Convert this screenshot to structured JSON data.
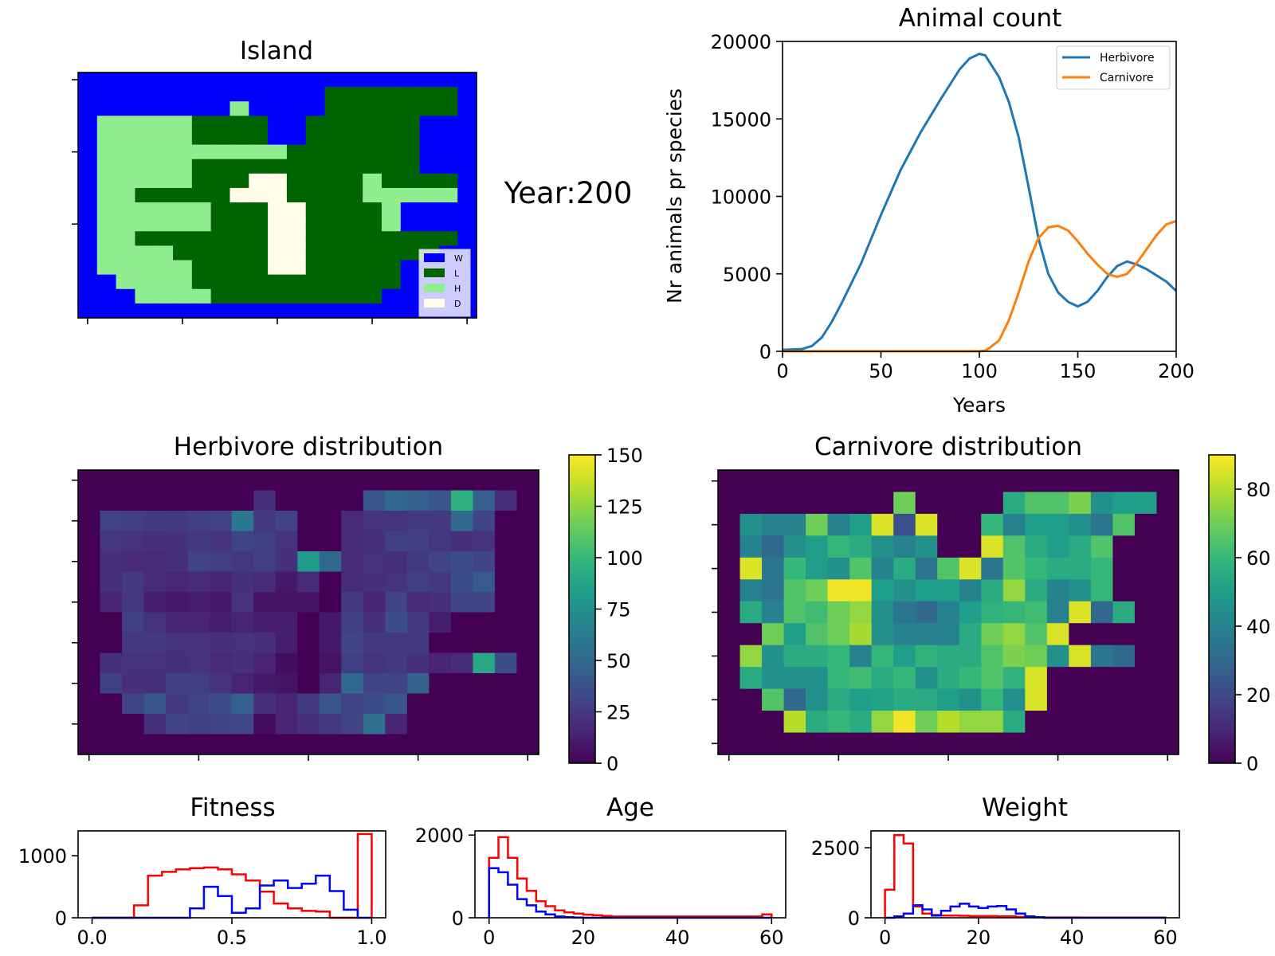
{
  "year_label": "Year:200",
  "island": {
    "title": "Island",
    "colors": {
      "W": "#0000ff",
      "L": "#006400",
      "H": "#90ee90",
      "D": "#fffde7"
    },
    "legend": [
      {
        "key": "W",
        "label": "W"
      },
      {
        "key": "L",
        "label": "L"
      },
      {
        "key": "H",
        "label": "H"
      },
      {
        "key": "D",
        "label": "D"
      }
    ],
    "map": [
      "WWWWWWWWWWWWWWWWWWWWW",
      "WWWWWWWWWWWWWLLLLLLLW",
      "WWWWWWWWHWWWWLLLLLLLW",
      "WHHHHHLLLLWWLLLLLLWWW",
      "WHHHHHLLLLWWLLLLLLWWW",
      "WHHHHHHHHHHLLLLLLLWWW",
      "WHHHHHLLLLLLLLLLLLWWW",
      "WHHHHHLLLDDLLLLHLLLLW",
      "WHHLLLLLDDDLLLLHHHHHW",
      "WHHHHHHLLLDDLLLLHWWWW",
      "WHHHHHHLLLDDLLLLHWWWW",
      "WHHLLLLLLLDDLLLLLLLLW",
      "WHHHHLLLLLDDLLLLLLLWW",
      "WHHHHHLLLLDDLLLLLWWWW",
      "WWHHHHLLLLLLLLLLLWWWW",
      "WWWHHHHLLLLLLLLLWWWWW",
      "WWWWWWWWWWWWWWWWWWWWW"
    ]
  },
  "animal_count": {
    "chart_data": {
      "type": "line",
      "title": "Animal count",
      "xlabel": "Years",
      "ylabel": "Nr animals pr species",
      "xlim": [
        0,
        200
      ],
      "ylim": [
        0,
        20000
      ],
      "xticks": [
        0,
        50,
        100,
        150,
        200
      ],
      "yticks": [
        0,
        5000,
        10000,
        15000,
        20000
      ],
      "legend_position": "top-right",
      "x": [
        0,
        10,
        15,
        20,
        25,
        30,
        40,
        50,
        60,
        70,
        80,
        90,
        95,
        100,
        103,
        105,
        110,
        115,
        120,
        125,
        130,
        135,
        140,
        145,
        150,
        155,
        160,
        165,
        170,
        175,
        180,
        185,
        190,
        195,
        200
      ],
      "series": [
        {
          "name": "Herbivore",
          "color": "#1f77b4",
          "values": [
            100,
            150,
            350,
            900,
            1900,
            3100,
            5700,
            8800,
            11700,
            14100,
            16200,
            18200,
            18900,
            19200,
            19100,
            18700,
            17700,
            16100,
            13800,
            10600,
            7300,
            5000,
            3800,
            3200,
            2900,
            3200,
            3900,
            4800,
            5500,
            5800,
            5600,
            5300,
            4900,
            4500,
            3900
          ]
        },
        {
          "name": "Carnivore",
          "color": "#ff7f0e",
          "values": [
            0,
            0,
            0,
            0,
            0,
            0,
            0,
            0,
            0,
            0,
            0,
            0,
            0,
            0,
            50,
            200,
            700,
            2000,
            3800,
            5800,
            7300,
            8000,
            8100,
            7800,
            7100,
            6300,
            5600,
            5000,
            4800,
            5000,
            5700,
            6600,
            7500,
            8200,
            8400
          ]
        }
      ]
    }
  },
  "herbivore_dist": {
    "title": "Herbivore distribution",
    "colorbar_ticks": [
      0,
      25,
      50,
      75,
      100,
      125,
      150
    ],
    "chart_data": {
      "type": "heatmap",
      "vmin": 0,
      "vmax": 150,
      "grid": [
        [
          0,
          0,
          0,
          0,
          0,
          0,
          0,
          0,
          0,
          0,
          0,
          0,
          0,
          0,
          0,
          0,
          0,
          0,
          0,
          0,
          0
        ],
        [
          0,
          0,
          0,
          0,
          0,
          0,
          0,
          0,
          20,
          0,
          0,
          0,
          0,
          40,
          50,
          45,
          40,
          95,
          45,
          20,
          0
        ],
        [
          0,
          30,
          28,
          26,
          25,
          28,
          30,
          60,
          25,
          30,
          0,
          0,
          18,
          22,
          22,
          26,
          25,
          50,
          30,
          0,
          0
        ],
        [
          0,
          24,
          22,
          20,
          20,
          25,
          22,
          30,
          28,
          22,
          0,
          0,
          18,
          20,
          28,
          28,
          24,
          20,
          22,
          0,
          0
        ],
        [
          0,
          20,
          18,
          18,
          20,
          30,
          28,
          24,
          28,
          20,
          80,
          50,
          18,
          22,
          20,
          25,
          30,
          35,
          30,
          0,
          0
        ],
        [
          0,
          20,
          25,
          18,
          16,
          18,
          15,
          20,
          18,
          10,
          18,
          0,
          18,
          20,
          22,
          28,
          25,
          35,
          42,
          0,
          0
        ],
        [
          0,
          15,
          25,
          12,
          10,
          12,
          10,
          22,
          8,
          8,
          8,
          0,
          25,
          15,
          30,
          18,
          20,
          30,
          30,
          0,
          0
        ],
        [
          0,
          0,
          28,
          22,
          15,
          15,
          12,
          15,
          12,
          12,
          0,
          10,
          28,
          20,
          35,
          25,
          12,
          0,
          0,
          0,
          0
        ],
        [
          0,
          0,
          25,
          25,
          22,
          22,
          20,
          22,
          20,
          12,
          0,
          10,
          30,
          25,
          25,
          25,
          0,
          0,
          0,
          0,
          0
        ],
        [
          0,
          20,
          22,
          22,
          20,
          22,
          18,
          20,
          15,
          5,
          0,
          8,
          28,
          22,
          25,
          20,
          15,
          18,
          90,
          35,
          0
        ],
        [
          0,
          28,
          20,
          20,
          28,
          28,
          22,
          15,
          10,
          8,
          0,
          15,
          50,
          30,
          30,
          45,
          0,
          0,
          0,
          0,
          0
        ],
        [
          0,
          0,
          30,
          40,
          25,
          30,
          35,
          45,
          20,
          15,
          25,
          40,
          30,
          35,
          40,
          0,
          0,
          0,
          0,
          0,
          0
        ],
        [
          0,
          0,
          0,
          20,
          30,
          28,
          30,
          32,
          5,
          15,
          20,
          25,
          30,
          55,
          15,
          0,
          0,
          0,
          0,
          0,
          0
        ],
        [
          0,
          0,
          0,
          0,
          0,
          0,
          0,
          0,
          0,
          0,
          0,
          0,
          0,
          0,
          0,
          0,
          0,
          0,
          0,
          0,
          0
        ]
      ]
    }
  },
  "carnivore_dist": {
    "title": "Carnivore distribution",
    "colorbar_ticks": [
      0,
      20,
      40,
      60,
      80
    ],
    "chart_data": {
      "type": "heatmap",
      "vmin": 0,
      "vmax": 90,
      "grid": [
        [
          0,
          0,
          0,
          0,
          0,
          0,
          0,
          0,
          0,
          0,
          0,
          0,
          0,
          0,
          0,
          0,
          0,
          0,
          0,
          0,
          0
        ],
        [
          0,
          0,
          0,
          0,
          0,
          0,
          0,
          0,
          70,
          0,
          0,
          0,
          0,
          55,
          65,
          65,
          72,
          45,
          50,
          50,
          0
        ],
        [
          0,
          45,
          40,
          40,
          70,
          40,
          50,
          85,
          22,
          85,
          0,
          0,
          60,
          40,
          50,
          50,
          45,
          35,
          65,
          0,
          0
        ],
        [
          0,
          40,
          30,
          45,
          50,
          60,
          55,
          45,
          40,
          45,
          0,
          0,
          85,
          65,
          55,
          50,
          55,
          65,
          0,
          0,
          0
        ],
        [
          0,
          85,
          35,
          60,
          50,
          45,
          65,
          40,
          55,
          35,
          65,
          85,
          35,
          65,
          60,
          55,
          55,
          60,
          0,
          0,
          0
        ],
        [
          0,
          40,
          35,
          65,
          70,
          88,
          88,
          50,
          45,
          50,
          50,
          40,
          55,
          75,
          55,
          40,
          45,
          60,
          0,
          0,
          0
        ],
        [
          0,
          55,
          40,
          65,
          62,
          70,
          75,
          45,
          35,
          30,
          40,
          50,
          58,
          60,
          62,
          40,
          85,
          30,
          55,
          0,
          0
        ],
        [
          0,
          0,
          70,
          50,
          65,
          70,
          78,
          45,
          40,
          40,
          40,
          55,
          70,
          75,
          65,
          85,
          0,
          0,
          0,
          0,
          0
        ],
        [
          0,
          75,
          45,
          55,
          55,
          60,
          40,
          60,
          50,
          58,
          55,
          55,
          65,
          72,
          70,
          45,
          85,
          35,
          30,
          0,
          0
        ],
        [
          0,
          55,
          45,
          45,
          45,
          60,
          62,
          55,
          60,
          45,
          55,
          60,
          65,
          58,
          85,
          0,
          0,
          0,
          0,
          0,
          0
        ],
        [
          0,
          0,
          65,
          30,
          45,
          55,
          50,
          52,
          55,
          55,
          50,
          45,
          60,
          45,
          85,
          0,
          0,
          0,
          0,
          0,
          0
        ],
        [
          0,
          0,
          0,
          80,
          55,
          60,
          55,
          75,
          88,
          70,
          80,
          75,
          75,
          55,
          0,
          0,
          0,
          0,
          0,
          0,
          0
        ],
        [
          0,
          0,
          0,
          0,
          0,
          0,
          0,
          0,
          0,
          0,
          0,
          0,
          0,
          0,
          0,
          0,
          0,
          0,
          0,
          0,
          0
        ]
      ]
    }
  },
  "fitness_hist": {
    "chart_data": {
      "type": "histogram",
      "title": "Fitness",
      "xlim": [
        -0.05,
        1.05
      ],
      "ylim": [
        0,
        1400
      ],
      "xticks": [
        0.0,
        0.5,
        1.0
      ],
      "xtick_labels": [
        "0.0",
        "0.5",
        "1.0"
      ],
      "yticks": [
        0,
        1000
      ],
      "bin_start": 0.0,
      "bin_width": 0.05,
      "series": [
        {
          "color": "#ff0000",
          "values": [
            0,
            0,
            0,
            200,
            680,
            740,
            780,
            800,
            810,
            780,
            700,
            600,
            420,
            230,
            150,
            110,
            100,
            0,
            0,
            1350
          ]
        },
        {
          "color": "#0000ff",
          "values": [
            0,
            0,
            0,
            0,
            0,
            0,
            0,
            150,
            500,
            350,
            80,
            150,
            520,
            600,
            480,
            550,
            680,
            430,
            130,
            0
          ]
        }
      ]
    }
  },
  "age_hist": {
    "chart_data": {
      "type": "histogram",
      "title": "Age",
      "xlim": [
        -3,
        63
      ],
      "ylim": [
        0,
        2100
      ],
      "xticks": [
        0,
        20,
        40,
        60
      ],
      "xtick_labels": [
        "0",
        "20",
        "40",
        "60"
      ],
      "yticks": [
        0,
        2000
      ],
      "bin_start": 0,
      "bin_width": 2,
      "series": [
        {
          "color": "#ff0000",
          "values": [
            1450,
            1950,
            1450,
            950,
            650,
            400,
            280,
            180,
            130,
            100,
            75,
            60,
            45,
            30,
            30,
            30,
            30,
            30,
            30,
            30,
            30,
            30,
            30,
            30,
            30,
            30,
            30,
            30,
            30,
            80
          ]
        },
        {
          "color": "#0000ff",
          "values": [
            1200,
            1100,
            800,
            450,
            300,
            150,
            80,
            30,
            15,
            5,
            0,
            0,
            0,
            0,
            0,
            0,
            0,
            0,
            0,
            0,
            0,
            0,
            0,
            0,
            0,
            0,
            0,
            0,
            0,
            0
          ]
        }
      ]
    }
  },
  "weight_hist": {
    "chart_data": {
      "type": "histogram",
      "title": "Weight",
      "xlim": [
        -3,
        63
      ],
      "ylim": [
        0,
        3100
      ],
      "xticks": [
        0,
        20,
        40,
        60
      ],
      "xtick_labels": [
        "0",
        "20",
        "40",
        "60"
      ],
      "yticks": [
        0,
        2500
      ],
      "bin_start": 0,
      "bin_width": 2,
      "series": [
        {
          "color": "#ff0000",
          "values": [
            1000,
            2950,
            2650,
            400,
            150,
            100,
            80,
            80,
            70,
            60,
            60,
            60,
            50,
            50,
            30,
            20,
            15,
            10,
            10,
            10,
            10,
            5,
            5,
            5,
            5,
            5,
            5,
            5,
            5,
            5
          ]
        },
        {
          "color": "#0000ff",
          "values": [
            0,
            50,
            150,
            450,
            300,
            80,
            250,
            400,
            500,
            400,
            350,
            400,
            420,
            300,
            150,
            50,
            20,
            0,
            0,
            0,
            0,
            0,
            0,
            0,
            0,
            0,
            0,
            0,
            0,
            0
          ]
        }
      ]
    }
  }
}
